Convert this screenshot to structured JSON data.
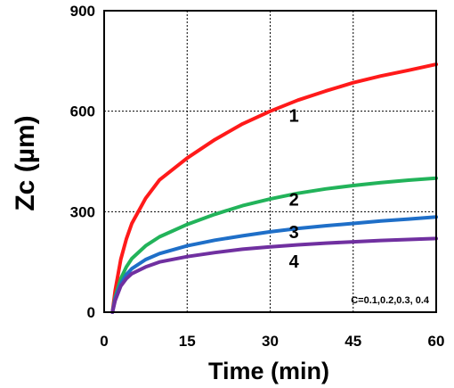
{
  "chart_data": {
    "type": "line",
    "xlabel": "Time (min)",
    "ylabel": "Zc (µm)",
    "xlim": [
      0,
      60
    ],
    "ylim": [
      0,
      900
    ],
    "xticks": [
      0,
      15,
      30,
      45,
      60
    ],
    "yticks": [
      0,
      300,
      600,
      900
    ],
    "grid": true,
    "annotation": "C=0.1,0.2,0.3, 0.4",
    "series": [
      {
        "name": "1",
        "color": "#ff1a1a",
        "x": [
          1.5,
          2,
          3,
          4,
          5,
          7.5,
          10,
          15,
          20,
          25,
          30,
          35,
          40,
          45,
          50,
          55,
          60
        ],
        "y": [
          0,
          65,
          158,
          218,
          265,
          340,
          395,
          460,
          515,
          562,
          600,
          633,
          660,
          685,
          705,
          722,
          740
        ]
      },
      {
        "name": "2",
        "color": "#22b35a",
        "x": [
          1.5,
          2,
          3,
          4,
          5,
          7.5,
          10,
          15,
          20,
          25,
          30,
          35,
          40,
          45,
          50,
          55,
          60
        ],
        "y": [
          0,
          45,
          100,
          135,
          160,
          198,
          225,
          262,
          292,
          318,
          338,
          355,
          368,
          378,
          387,
          394,
          400
        ]
      },
      {
        "name": "3",
        "color": "#1f6fc8",
        "x": [
          1.5,
          2,
          3,
          4,
          5,
          7.5,
          10,
          15,
          20,
          25,
          30,
          35,
          40,
          45,
          50,
          55,
          60
        ],
        "y": [
          0,
          40,
          85,
          112,
          130,
          157,
          175,
          198,
          215,
          228,
          240,
          250,
          258,
          265,
          272,
          278,
          284
        ]
      },
      {
        "name": "4",
        "color": "#7030a0",
        "x": [
          1.5,
          2,
          3,
          4,
          5,
          7.5,
          10,
          15,
          20,
          25,
          30,
          35,
          40,
          45,
          50,
          55,
          60
        ],
        "y": [
          0,
          35,
          78,
          100,
          115,
          135,
          150,
          166,
          178,
          188,
          195,
          201,
          206,
          210,
          214,
          217,
          220
        ]
      }
    ],
    "labels": [
      {
        "text": "1",
        "x": 35,
        "y": 595
      },
      {
        "text": "2",
        "x": 35,
        "y": 345
      },
      {
        "text": "3",
        "x": 35,
        "y": 248
      },
      {
        "text": "4",
        "x": 35,
        "y": 160
      }
    ]
  }
}
